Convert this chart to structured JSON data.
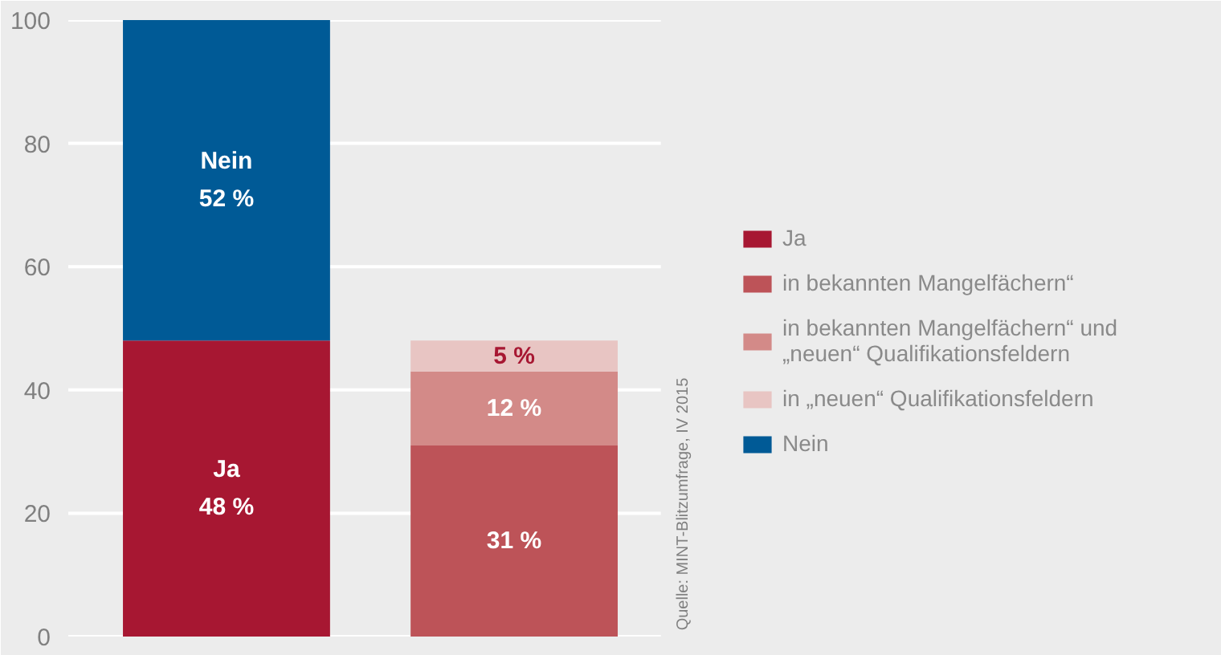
{
  "chart_data": {
    "type": "bar",
    "stacked": true,
    "categories": [
      null,
      null
    ],
    "series": [
      {
        "name": "Ja",
        "color": "#a71732",
        "values": [
          48,
          null
        ],
        "value_labels": [
          "Ja\n48 %",
          null
        ]
      },
      {
        "name": "in bekannten Mangelfächern“",
        "color": "#bd5358",
        "values": [
          null,
          31
        ],
        "value_labels": [
          null,
          "31 %"
        ]
      },
      {
        "name": "in bekannten Mangelfächern“ und\n„neuen“ Qualifikationsfeldern",
        "color": "#d38a88",
        "values": [
          null,
          12
        ],
        "value_labels": [
          null,
          "12 %"
        ]
      },
      {
        "name": "in „neuen“ Qualifikationsfeldern",
        "color": "#e8c5c3",
        "values": [
          null,
          5
        ],
        "value_labels": [
          null,
          "5 %"
        ]
      },
      {
        "name": "Nein",
        "color": "#005a96",
        "values": [
          52,
          null
        ],
        "value_labels": [
          "Nein\n52 %",
          null
        ]
      }
    ],
    "ylim": [
      0,
      100
    ],
    "yticks": [
      0,
      20,
      40,
      60,
      80,
      100
    ],
    "grid": "y",
    "legend": "right",
    "tick_labels": "y",
    "annotations": [
      "Quelle: MINT-Blitzumfrage, IV 2015"
    ]
  }
}
